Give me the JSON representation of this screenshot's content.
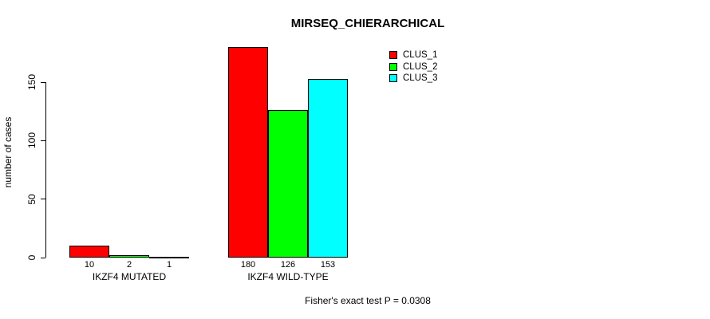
{
  "chart_data": {
    "type": "bar",
    "title": "MIRSEQ_CHIERARCHICAL",
    "xlabel": "",
    "ylabel": "number of cases",
    "ylim": [
      0,
      180
    ],
    "yticks": [
      0,
      50,
      100,
      150
    ],
    "grid": false,
    "legend_position": "top-right",
    "categories": [
      "IKZF4 MUTATED",
      "IKZF4 WILD-TYPE"
    ],
    "series": [
      {
        "name": "CLUS_1",
        "color": "#FF0000",
        "values": [
          10,
          180
        ]
      },
      {
        "name": "CLUS_2",
        "color": "#00FF00",
        "values": [
          2,
          126
        ]
      },
      {
        "name": "CLUS_3",
        "color": "#00FFFF",
        "values": [
          1,
          153
        ]
      }
    ],
    "bar_value_labels": [
      [
        "10",
        "2",
        "1"
      ],
      [
        "180",
        "126",
        "153"
      ]
    ],
    "annotation": "Fisher's exact test P = 0.0308"
  }
}
